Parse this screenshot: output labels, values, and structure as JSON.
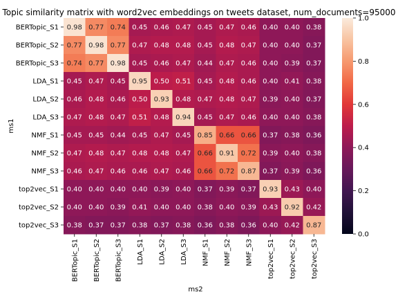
{
  "chart_data": {
    "type": "heatmap",
    "title": "Topic similarity matrix with word2vec embeddings on tweets dataset, num_documents=95000",
    "xlabel": "ms2",
    "ylabel": "ms1",
    "rows": [
      "BERTopic_S1",
      "BERTopic_S2",
      "BERTopic_S3",
      "LDA_S1",
      "LDA_S2",
      "LDA_S3",
      "NMF_S1",
      "NMF_S2",
      "NMF_S3",
      "top2vec_S1",
      "top2vec_S2",
      "top2vec_S3"
    ],
    "cols": [
      "BERTopic_S1",
      "BERTopic_S2",
      "BERTopic_S3",
      "LDA_S1",
      "LDA_S2",
      "LDA_S3",
      "NMF_S1",
      "NMF_S2",
      "NMF_S3",
      "top2vec_S1",
      "top2vec_S2",
      "top2vec_S3"
    ],
    "values": [
      [
        0.98,
        0.77,
        0.74,
        0.45,
        0.46,
        0.47,
        0.45,
        0.47,
        0.46,
        0.4,
        0.4,
        0.38
      ],
      [
        0.77,
        0.98,
        0.77,
        0.47,
        0.48,
        0.48,
        0.45,
        0.48,
        0.47,
        0.4,
        0.4,
        0.37
      ],
      [
        0.74,
        0.77,
        0.98,
        0.45,
        0.46,
        0.47,
        0.44,
        0.47,
        0.46,
        0.4,
        0.39,
        0.37
      ],
      [
        0.45,
        0.47,
        0.45,
        0.95,
        0.5,
        0.51,
        0.45,
        0.48,
        0.46,
        0.4,
        0.41,
        0.38
      ],
      [
        0.46,
        0.48,
        0.46,
        0.5,
        0.93,
        0.48,
        0.47,
        0.48,
        0.47,
        0.39,
        0.4,
        0.37
      ],
      [
        0.47,
        0.48,
        0.47,
        0.51,
        0.48,
        0.94,
        0.45,
        0.47,
        0.46,
        0.4,
        0.4,
        0.38
      ],
      [
        0.45,
        0.45,
        0.44,
        0.45,
        0.47,
        0.45,
        0.85,
        0.66,
        0.66,
        0.37,
        0.38,
        0.36
      ],
      [
        0.47,
        0.48,
        0.47,
        0.48,
        0.48,
        0.47,
        0.66,
        0.91,
        0.72,
        0.39,
        0.4,
        0.38
      ],
      [
        0.46,
        0.47,
        0.46,
        0.46,
        0.47,
        0.46,
        0.66,
        0.72,
        0.87,
        0.37,
        0.39,
        0.36
      ],
      [
        0.4,
        0.4,
        0.4,
        0.4,
        0.39,
        0.4,
        0.37,
        0.39,
        0.37,
        0.93,
        0.43,
        0.4
      ],
      [
        0.4,
        0.4,
        0.39,
        0.41,
        0.4,
        0.4,
        0.38,
        0.4,
        0.39,
        0.43,
        0.92,
        0.42
      ],
      [
        0.38,
        0.37,
        0.37,
        0.38,
        0.37,
        0.38,
        0.36,
        0.38,
        0.36,
        0.4,
        0.42,
        0.87
      ]
    ],
    "colorbar": {
      "range": [
        0.0,
        1.0
      ],
      "ticks": [
        "0.0",
        "0.2",
        "0.4",
        "0.6",
        "0.8",
        "1.0"
      ],
      "colormap": "rocket"
    },
    "cell_labels": true,
    "grid": false,
    "legend": "colorbar-right"
  }
}
